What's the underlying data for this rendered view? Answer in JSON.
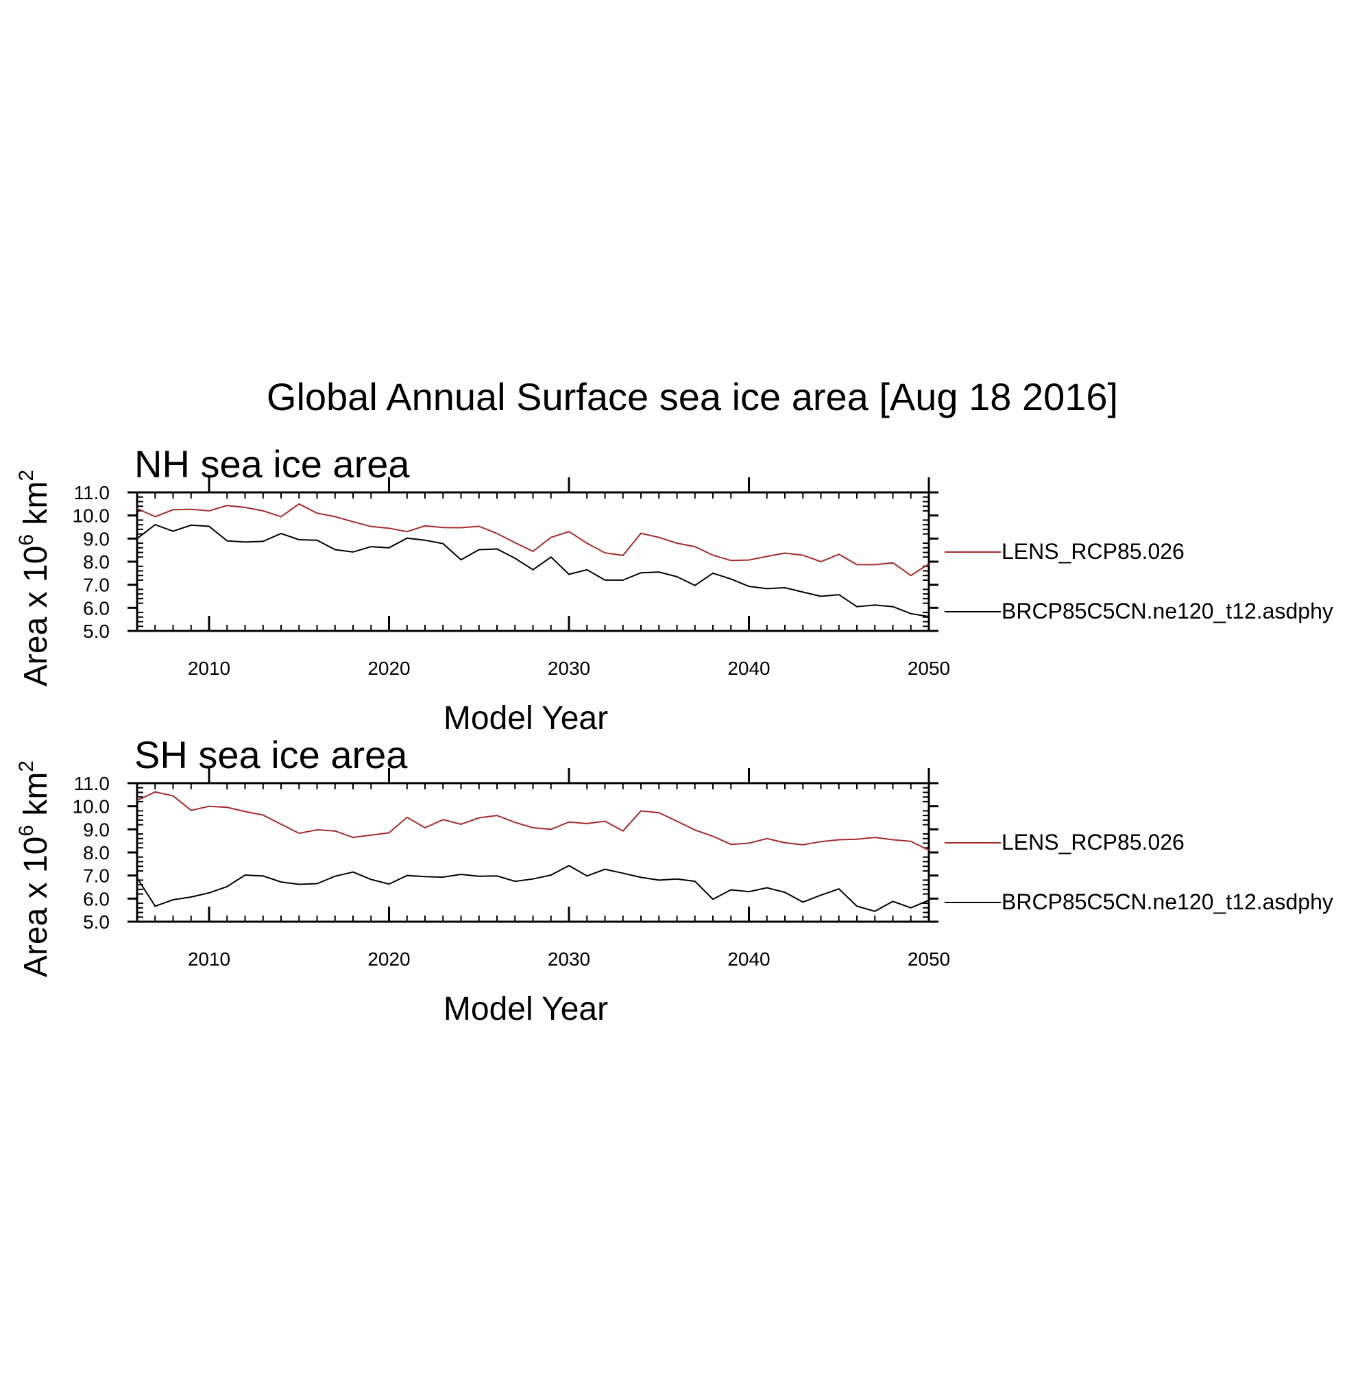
{
  "figure": {
    "title": "Global Annual Surface sea ice area [Aug 18 2016]"
  },
  "chart_data": [
    {
      "type": "line",
      "title": "NH sea ice area",
      "xlabel": "Model Year",
      "ylabel_base": "Area x 10",
      "ylabel_exp": "6",
      "ylabel_unit": " km",
      "ylabel_unit_exp": "2",
      "xlim": [
        2006,
        2050
      ],
      "ylim": [
        5.0,
        11.0
      ],
      "xticks": [
        2010,
        2020,
        2030,
        2040,
        2050
      ],
      "xtick_labels": [
        "2010",
        "2020",
        "2030",
        "2040",
        "2050"
      ],
      "yticks": [
        5.0,
        6.0,
        7.0,
        8.0,
        9.0,
        10.0,
        11.0
      ],
      "ytick_labels": [
        "5.0",
        "6.0",
        "7.0",
        "8.0",
        "9.0",
        "10.0",
        "11.0"
      ],
      "legend_position": "right",
      "x": [
        2006,
        2007,
        2008,
        2009,
        2010,
        2011,
        2012,
        2013,
        2014,
        2015,
        2016,
        2017,
        2018,
        2019,
        2020,
        2021,
        2022,
        2023,
        2024,
        2025,
        2026,
        2027,
        2028,
        2029,
        2030,
        2031,
        2032,
        2033,
        2034,
        2035,
        2036,
        2037,
        2038,
        2039,
        2040,
        2041,
        2042,
        2043,
        2044,
        2045,
        2046,
        2047,
        2048,
        2049,
        2050
      ],
      "series": [
        {
          "name": "LENS_RCP85.026",
          "color": "#a52a2a",
          "values": [
            10.3,
            9.95,
            10.25,
            10.27,
            10.2,
            10.43,
            10.35,
            10.2,
            9.95,
            10.5,
            10.1,
            9.95,
            9.73,
            9.52,
            9.45,
            9.3,
            9.55,
            9.48,
            9.47,
            9.53,
            9.22,
            8.82,
            8.45,
            9.05,
            9.3,
            8.8,
            8.38,
            8.27,
            9.23,
            9.05,
            8.8,
            8.65,
            8.28,
            8.05,
            8.07,
            8.23,
            8.37,
            8.28,
            8.0,
            8.32,
            7.87,
            7.87,
            7.95,
            7.4,
            7.9
          ]
        },
        {
          "name": "BRCP85C5CN.ne120_t12.asdphy",
          "color": "#000000",
          "values": [
            9.0,
            9.6,
            9.32,
            9.58,
            9.53,
            8.9,
            8.85,
            8.88,
            9.22,
            8.95,
            8.93,
            8.52,
            8.42,
            8.65,
            8.6,
            9.02,
            8.93,
            8.78,
            8.08,
            8.52,
            8.55,
            8.15,
            7.65,
            8.2,
            7.45,
            7.65,
            7.2,
            7.2,
            7.52,
            7.55,
            7.35,
            6.97,
            7.5,
            7.25,
            6.93,
            6.83,
            6.87,
            6.68,
            6.5,
            6.57,
            6.05,
            6.12,
            6.05,
            5.75,
            5.62
          ]
        }
      ]
    },
    {
      "type": "line",
      "title": "SH sea ice area",
      "xlabel": "Model Year",
      "ylabel_base": "Area x 10",
      "ylabel_exp": "6",
      "ylabel_unit": " km",
      "ylabel_unit_exp": "2",
      "xlim": [
        2006,
        2050
      ],
      "ylim": [
        5.0,
        11.0
      ],
      "xticks": [
        2010,
        2020,
        2030,
        2040,
        2050
      ],
      "xtick_labels": [
        "2010",
        "2020",
        "2030",
        "2040",
        "2050"
      ],
      "yticks": [
        5.0,
        6.0,
        7.0,
        8.0,
        9.0,
        10.0,
        11.0
      ],
      "ytick_labels": [
        "5.0",
        "6.0",
        "7.0",
        "8.0",
        "9.0",
        "10.0",
        "11.0"
      ],
      "legend_position": "right",
      "x": [
        2006,
        2007,
        2008,
        2009,
        2010,
        2011,
        2012,
        2013,
        2014,
        2015,
        2016,
        2017,
        2018,
        2019,
        2020,
        2021,
        2022,
        2023,
        2024,
        2025,
        2026,
        2027,
        2028,
        2029,
        2030,
        2031,
        2032,
        2033,
        2034,
        2035,
        2036,
        2037,
        2038,
        2039,
        2040,
        2041,
        2042,
        2043,
        2044,
        2045,
        2046,
        2047,
        2048,
        2049,
        2050
      ],
      "series": [
        {
          "name": "LENS_RCP85.026",
          "color": "#a52a2a",
          "values": [
            10.25,
            10.62,
            10.45,
            9.82,
            10.0,
            9.95,
            9.77,
            9.62,
            9.22,
            8.83,
            8.98,
            8.93,
            8.65,
            8.75,
            8.85,
            9.52,
            9.07,
            9.42,
            9.22,
            9.5,
            9.6,
            9.3,
            9.07,
            9.0,
            9.32,
            9.25,
            9.35,
            8.93,
            9.8,
            9.72,
            9.35,
            8.97,
            8.7,
            8.35,
            8.4,
            8.6,
            8.42,
            8.33,
            8.47,
            8.55,
            8.57,
            8.65,
            8.55,
            8.48,
            8.1
          ]
        },
        {
          "name": "BRCP85C5CN.ne120_t12.asdphy",
          "color": "#000000",
          "values": [
            6.9,
            5.67,
            5.95,
            6.07,
            6.25,
            6.52,
            7.02,
            6.98,
            6.72,
            6.62,
            6.65,
            6.97,
            7.15,
            6.83,
            6.63,
            7.0,
            6.95,
            6.93,
            7.05,
            6.97,
            6.98,
            6.75,
            6.85,
            7.02,
            7.43,
            6.98,
            7.27,
            7.1,
            6.92,
            6.8,
            6.85,
            6.75,
            5.97,
            6.38,
            6.3,
            6.47,
            6.27,
            5.85,
            6.15,
            6.42,
            5.67,
            5.45,
            5.88,
            5.6,
            5.93
          ]
        }
      ]
    }
  ]
}
